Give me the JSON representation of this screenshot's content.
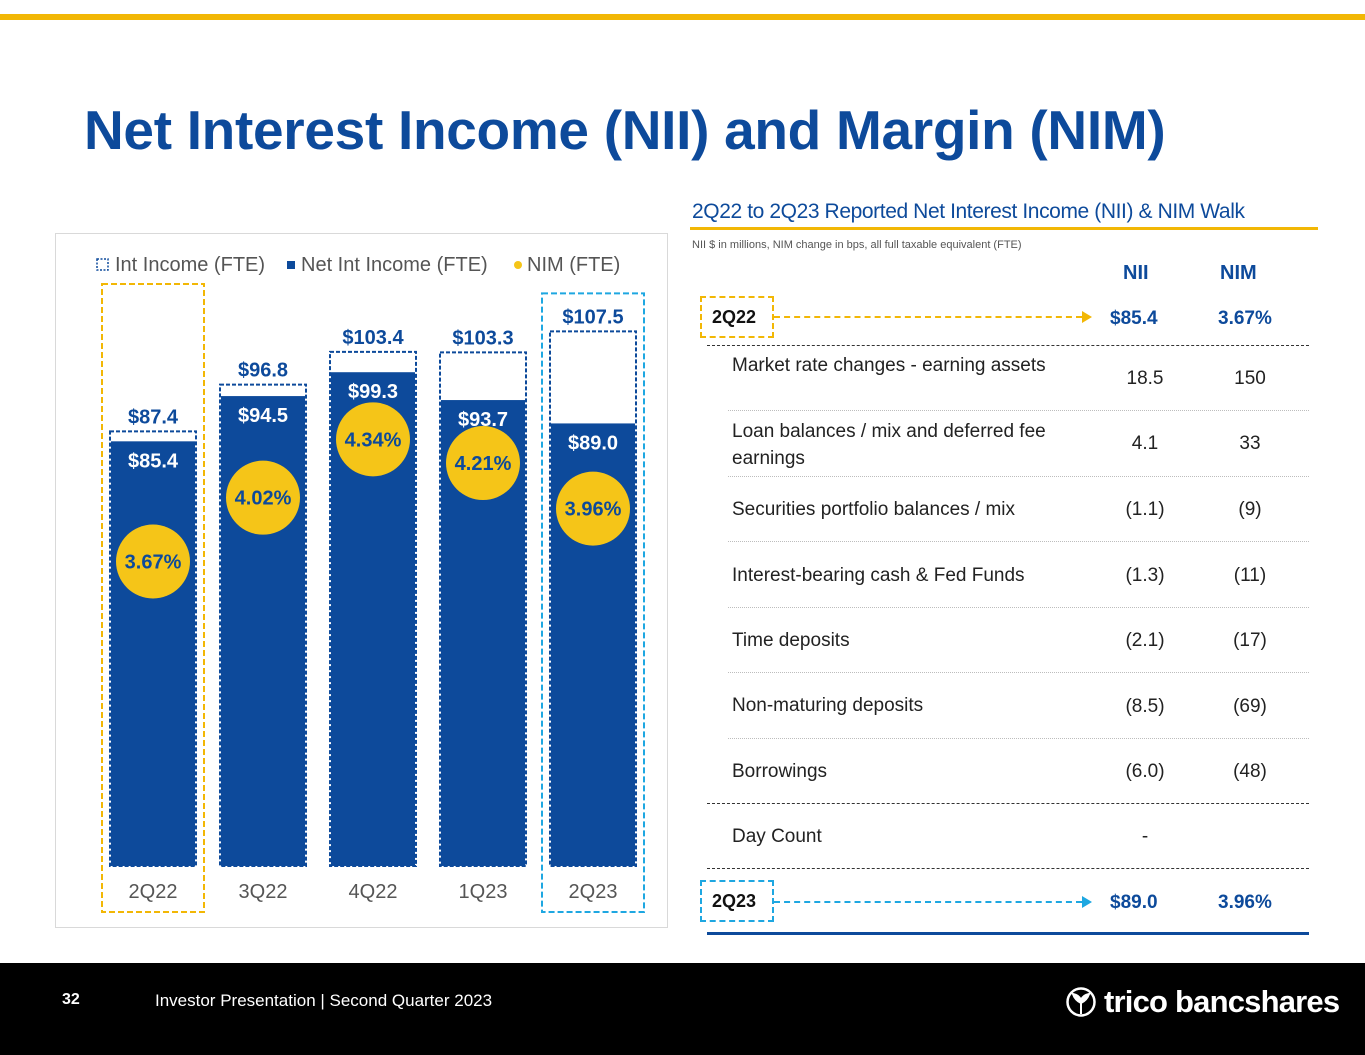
{
  "slide": {
    "title": "Net Interest Income (NII) and Margin (NIM)",
    "page_number": "32",
    "footer_text": "Investor Presentation | Second Quarter 2023",
    "logo_text": "trico bancshares"
  },
  "colors": {
    "navy": "#0d4a9b",
    "gold": "#f2b705",
    "sky": "#1ea7e1",
    "nim_dot": "#f5c518"
  },
  "chart_data": {
    "type": "bar",
    "title": "",
    "categories": [
      "2Q22",
      "3Q22",
      "4Q22",
      "1Q23",
      "2Q23"
    ],
    "series": [
      {
        "name": "Int Income (FTE)",
        "values": [
          87.4,
          96.8,
          103.4,
          103.3,
          107.5
        ],
        "labels": [
          "$87.4",
          "$96.8",
          "$103.4",
          "$103.3",
          "$107.5"
        ]
      },
      {
        "name": "Net Int Income (FTE)",
        "values": [
          85.4,
          94.5,
          99.3,
          93.7,
          89.0
        ],
        "labels": [
          "$85.4",
          "$94.5",
          "$99.3",
          "$93.7",
          "$89.0"
        ]
      },
      {
        "name": "NIM (FTE)",
        "values": [
          3.67,
          4.02,
          4.34,
          4.21,
          3.96
        ],
        "labels": [
          "3.67%",
          "4.02%",
          "4.34%",
          "4.21%",
          "3.96%"
        ]
      }
    ],
    "ylim": [
      0,
      110
    ],
    "nim_ylim": [
      2.0,
      5.0
    ],
    "legend": [
      "Int Income (FTE)",
      "Net Int Income (FTE)",
      "NIM (FTE)"
    ],
    "legend_position": "top",
    "highlight": {
      "first_category": "2Q22",
      "first_color": "#f2b705",
      "last_category": "2Q23",
      "last_color": "#1ea7e1"
    }
  },
  "walk": {
    "title": "2Q22 to 2Q23 Reported Net Interest Income (NII) & NIM Walk",
    "note": "NII $ in millions, NIM change in bps, all full taxable equivalent (FTE)",
    "col_nii": "NII",
    "col_nim": "NIM",
    "start": {
      "label": "2Q22",
      "nii": "$85.4",
      "nim": "3.67%"
    },
    "rows": [
      {
        "label": "Market rate changes - earning assets",
        "nii": "18.5",
        "nim": "150"
      },
      {
        "label": "Loan balances / mix and deferred fee earnings",
        "nii": "4.1",
        "nim": "33"
      },
      {
        "label": "Securities portfolio balances / mix",
        "nii": "(1.1)",
        "nim": "(9)"
      },
      {
        "label": "Interest-bearing cash & Fed Funds",
        "nii": "(1.3)",
        "nim": "(11)"
      },
      {
        "label": "Time deposits",
        "nii": "(2.1)",
        "nim": "(17)"
      },
      {
        "label": "Non-maturing deposits",
        "nii": "(8.5)",
        "nim": "(69)"
      },
      {
        "label": "Borrowings",
        "nii": "(6.0)",
        "nim": "(48)"
      },
      {
        "label": "Day Count",
        "nii": "-",
        "nim": ""
      }
    ],
    "end": {
      "label": "2Q23",
      "nii": "$89.0",
      "nim": "3.96%"
    }
  }
}
